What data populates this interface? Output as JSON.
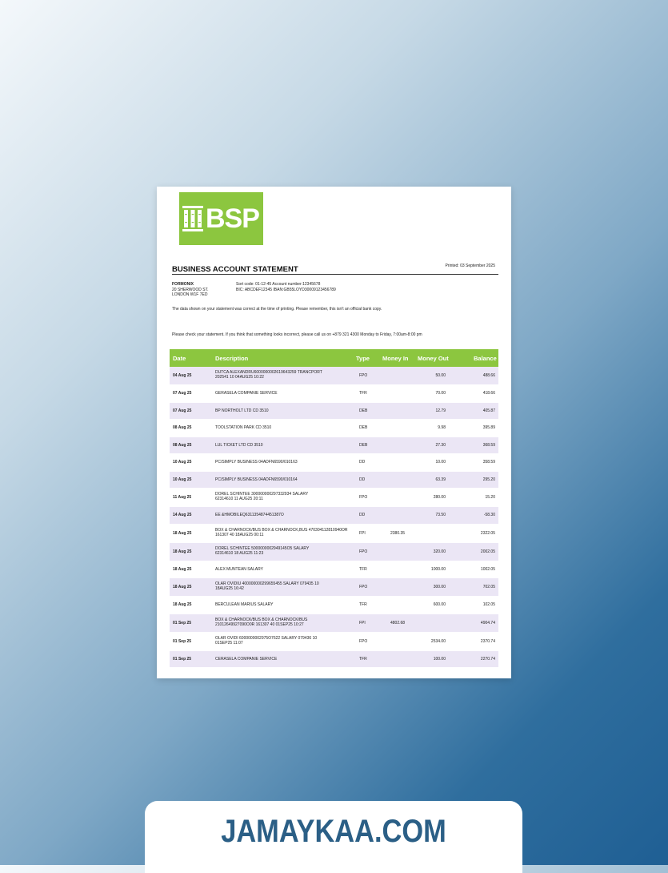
{
  "bank": {
    "logo_text": "BSP"
  },
  "statement": {
    "title": "BUSINESS ACCOUNT STATEMENT",
    "printed": "Printed: 03 September 2025",
    "company_name": "FORMONIX",
    "address_line1": "20 SHERWOOD ST.",
    "address_line2": "LONDON W1F 7ED",
    "sort_code": "Sort code: 01-12-45    Account number:12345678",
    "bic_iban": "BIC: ABCDEF12345   IBAN:GB55LOYD30009123456789",
    "note_printing": "The data shown on your statement was correct at the time of printing. Please remember, this isn't an official bank copy.",
    "note_check": "Please check your statement. If you think that something looks incorrect, please call us on +879 321 4300 Monday to Friday, 7:00am-8:00 pm"
  },
  "table": {
    "headers": {
      "date": "Date",
      "description": "Description",
      "type": "Type",
      "money_in": "Money In",
      "money_out": "Money Out",
      "balance": "Balance"
    },
    "rows": [
      {
        "date": "04 Aug 25",
        "desc1": "DUTCA ALEXANDRU6000000002619643259 TRANCPORT",
        "desc2": "202541 10 04AUG25 10:22",
        "type": "FPO",
        "in": "",
        "out": "50.00",
        "balance": "488.66"
      },
      {
        "date": "07 Aug 25",
        "desc1": "GERASELA COMPANIE SERVICE",
        "desc2": "",
        "type": "TFR",
        "in": "",
        "out": "70.00",
        "balance": "418.66"
      },
      {
        "date": "07 Aug 25",
        "desc1": "BP NORTHOLT LTD CD 3510",
        "desc2": "",
        "type": "DEB",
        "in": "",
        "out": "12.79",
        "balance": "405.87"
      },
      {
        "date": "08 Aug 25",
        "desc1": "TOOLSTATION PARK CD 3510",
        "desc2": "",
        "type": "DEB",
        "in": "",
        "out": "9.98",
        "balance": "395.89"
      },
      {
        "date": "08 Aug 25",
        "desc1": "LUL TICKET LTD CD 3510",
        "desc2": "",
        "type": "DEB",
        "in": "",
        "out": "27.30",
        "balance": "368.59"
      },
      {
        "date": "10 Aug 25",
        "desc1": "PC/SIMPLY BUSINESS 04ADFN6590/010163",
        "desc2": "",
        "type": "DD",
        "in": "",
        "out": "10.00",
        "balance": "358.59"
      },
      {
        "date": "10 Aug 25",
        "desc1": "PC/SIMPLY BUSINESS 04ADFN6590/010164",
        "desc2": "",
        "type": "DD",
        "in": "",
        "out": "63.39",
        "balance": "295.20"
      },
      {
        "date": "11 Aug 25",
        "desc1": "DOREL SCHINTEE 300000000297332934 SALARY",
        "desc2": "62314610 11 AUG25 20:11",
        "type": "FPO",
        "in": "",
        "out": "280.00",
        "balance": "15.20"
      },
      {
        "date": "14 Aug 25",
        "desc1": "EE &HMOBILEQ6311354874451387O",
        "desc2": "",
        "type": "DD",
        "in": "",
        "out": "73.50",
        "balance": "-58.30"
      },
      {
        "date": "18 Aug 25",
        "desc1": "BOX & CHARNOCK/BUS BOX & CHARNOCK,BUS 470304112810940OR",
        "desc2": "161307 40 18AUG25 00:11",
        "type": "FPI",
        "in": "2380.35",
        "out": "",
        "balance": "2322.05"
      },
      {
        "date": "18 Aug 25",
        "desc1": "DOREL SCHINTEE 5000000002949145O5 SALARY",
        "desc2": "62314610 18 AUG25 11:23",
        "type": "FPO",
        "in": "",
        "out": "320.00",
        "balance": "2002.05"
      },
      {
        "date": "18 Aug 25",
        "desc1": "ALEX MUNTEAN SALARY",
        "desc2": "",
        "type": "TFR",
        "in": "",
        "out": "1000.00",
        "balance": "1002.05"
      },
      {
        "date": "18 Aug 25",
        "desc1": "OLAR OVIDIU 400000000299655455 SALARY 079435 10",
        "desc2": "18AUG25 16:42",
        "type": "FPO",
        "in": "",
        "out": "300.00",
        "balance": "702.05"
      },
      {
        "date": "18 Aug 25",
        "desc1": "BERCULEAN MARIUS SALARY",
        "desc2": "",
        "type": "TFR",
        "in": "",
        "out": "600.00",
        "balance": "102.05"
      },
      {
        "date": "01 Sep 25",
        "desc1": "BOX & CHARNOCK/BUS BOX & CHARNOCK/BUS",
        "desc2": "21012649927090O0R 161307 40 01SEP25 10:27",
        "type": "FPI",
        "in": "4802.68",
        "out": "",
        "balance": "4904.74"
      },
      {
        "date": "01 Sep 25",
        "desc1": "OLAR OVIDI 6000000002975O7622 SALARY 079436 10",
        "desc2": "01SEP25 11:07",
        "type": "FPO",
        "in": "",
        "out": "2534.00",
        "balance": "2370.74"
      },
      {
        "date": "01 Sep 25",
        "desc1": "CERASELA COMPANIE SERVICE",
        "desc2": "",
        "type": "TFR",
        "in": "",
        "out": "100.00",
        "balance": "2270.74"
      }
    ]
  },
  "footer": {
    "site": "JAMAYKAA.COM"
  },
  "colors": {
    "brand_green": "#8cc63f",
    "row_alt": "#ebe6f5",
    "footer_text": "#2b5f86"
  },
  "icons": {
    "logo_mark": "bank-columns-icon"
  }
}
